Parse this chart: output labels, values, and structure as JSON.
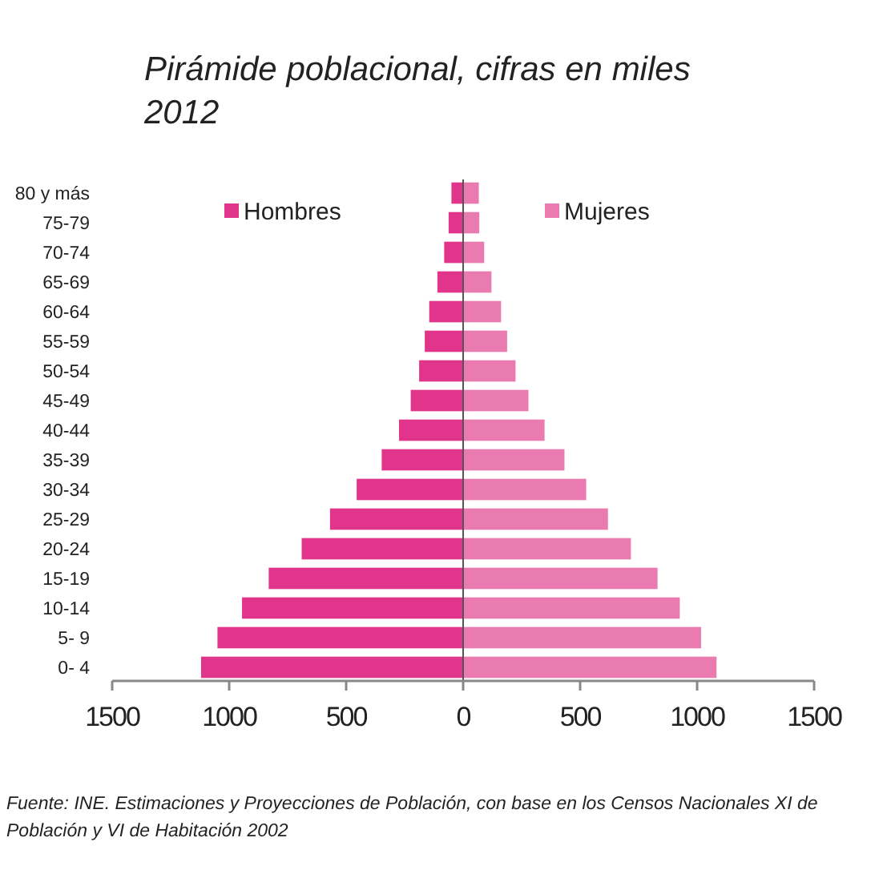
{
  "chart_data": {
    "type": "bar",
    "orientation": "horizontal",
    "stacked": true,
    "title": "Pirámide poblacional, cifras en miles",
    "subtitle": "2012",
    "categories": [
      "80 y más",
      "75-79",
      "70-74",
      "65-69",
      "60-64",
      "55-59",
      "50-54",
      "45-49",
      "40-44",
      "35-39",
      "30-34",
      "25-29",
      "20-24",
      "15-19",
      "10-14",
      "5- 9",
      "0- 4"
    ],
    "series": [
      {
        "name": "Hombres",
        "color": "#e0358a",
        "values": [
          -50,
          -62,
          -81,
          -110,
          -145,
          -164,
          -188,
          -224,
          -274,
          -348,
          -455,
          -569,
          -690,
          -831,
          -945,
          -1050,
          -1120
        ]
      },
      {
        "name": "Mujeres",
        "color": "#ea7bb0",
        "values": [
          67,
          69,
          90,
          121,
          162,
          188,
          224,
          279,
          348,
          433,
          526,
          619,
          717,
          831,
          926,
          1017,
          1083
        ]
      }
    ],
    "xlim": [
      -1500,
      1500
    ],
    "xticks": [
      {
        "value": -1500,
        "label": "1500"
      },
      {
        "value": -1000,
        "label": "1000"
      },
      {
        "value": -500,
        "label": "500"
      },
      0,
      500,
      1000,
      1500
    ],
    "legend": "top",
    "annotations": [
      "Fuente: INE. Estimaciones y Proyecciones de Población, con base en los Censos Nacionales XI de Población y VI de Habitación 2002"
    ]
  }
}
